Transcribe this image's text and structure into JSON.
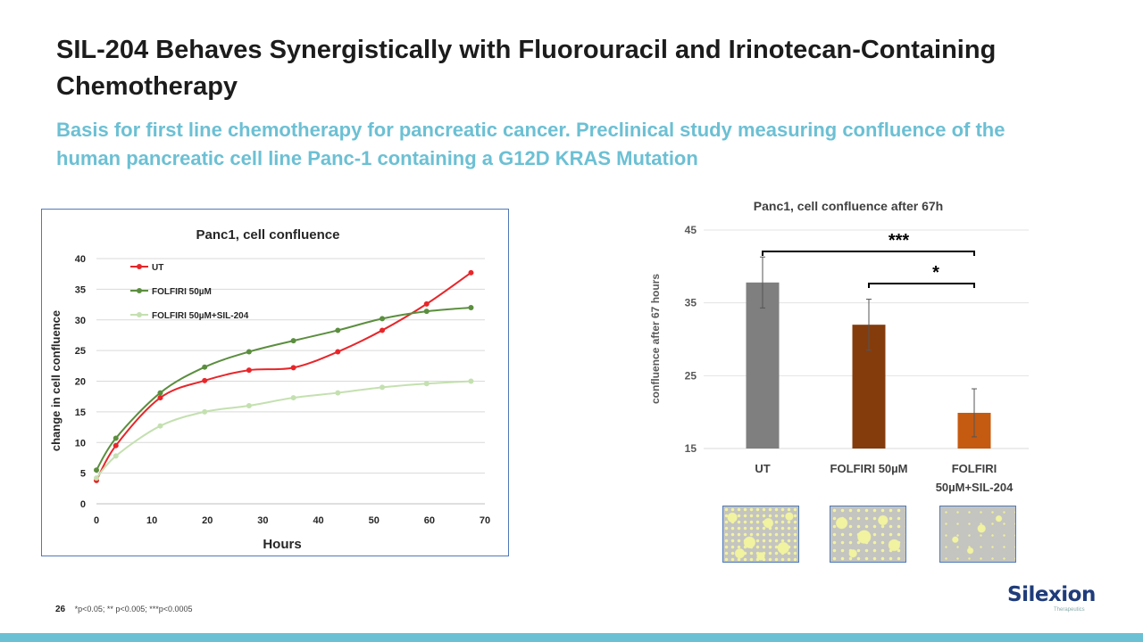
{
  "slide": {
    "title": "SIL-204 Behaves Synergistically with Fluorouracil and Irinotecan-Containing Chemotherapy",
    "subtitle": "Basis for first line chemotherapy for pancreatic cancer.  Preclinical study measuring confluence of the human pancreatic cell line Panc-1 containing a G12D KRAS Mutation",
    "page_number": "26",
    "footnote": "*p<0.05; ** p<0.005; ***p<0.0005",
    "logo_text": "Silexion",
    "logo_tagline": "Therapeutics"
  },
  "chart_data": [
    {
      "type": "line",
      "title": "Panc1, cell confluence",
      "xlabel": "Hours",
      "ylabel": "change in cell confluence",
      "xlim": [
        0,
        70
      ],
      "ylim": [
        0,
        40
      ],
      "xticks": [
        0,
        10,
        20,
        30,
        40,
        50,
        60,
        70
      ],
      "yticks": [
        0,
        5,
        10,
        15,
        20,
        25,
        30,
        35,
        40
      ],
      "legend_position": "top-left",
      "grid": true,
      "series": [
        {
          "name": "UT",
          "color": "#e8262a",
          "x": [
            0,
            3.5,
            11.5,
            19.5,
            27.5,
            35.5,
            43.5,
            51.5,
            59.5,
            67.5
          ],
          "y": [
            3.8,
            9.5,
            17.3,
            20.1,
            21.8,
            22.2,
            24.8,
            28.3,
            32.6,
            37.7
          ]
        },
        {
          "name": "FOLFIRI 50µM",
          "color": "#5b8e3e",
          "x": [
            0,
            3.5,
            11.5,
            19.5,
            27.5,
            35.5,
            43.5,
            51.5,
            59.5,
            67.5
          ],
          "y": [
            5.5,
            10.7,
            18.1,
            22.3,
            24.8,
            26.6,
            28.3,
            30.2,
            31.4,
            32.0
          ]
        },
        {
          "name": "FOLFIRI 50µM+SIL-204",
          "color": "#c4e0b0",
          "x": [
            0,
            3.5,
            11.5,
            19.5,
            27.5,
            35.5,
            43.5,
            51.5,
            59.5,
            67.5
          ],
          "y": [
            4.2,
            7.8,
            12.7,
            15.0,
            16.0,
            17.3,
            18.1,
            19.0,
            19.6,
            20.0
          ]
        }
      ]
    },
    {
      "type": "bar",
      "title": "Panc1, cell confluence after 67h",
      "xlabel": "",
      "ylabel": "confluence after 67 hours",
      "ylim": [
        15,
        45
      ],
      "yticks": [
        15,
        25,
        35,
        45
      ],
      "grid": true,
      "categories": [
        "UT",
        "FOLFIRI 50µM",
        "FOLFIRI 50µM+SIL-204"
      ],
      "category_lines": [
        [
          "UT"
        ],
        [
          "FOLFIRI 50µM"
        ],
        [
          "FOLFIRI",
          "50µM+SIL-204"
        ]
      ],
      "values": [
        37.8,
        32.0,
        19.9
      ],
      "errors": [
        3.5,
        3.5,
        3.3
      ],
      "colors": [
        "#7f7f7f",
        "#843c0c",
        "#c55a11"
      ],
      "significance": [
        {
          "from": 0,
          "to": 2,
          "label": "***"
        },
        {
          "from": 1,
          "to": 2,
          "label": "*"
        }
      ]
    }
  ]
}
